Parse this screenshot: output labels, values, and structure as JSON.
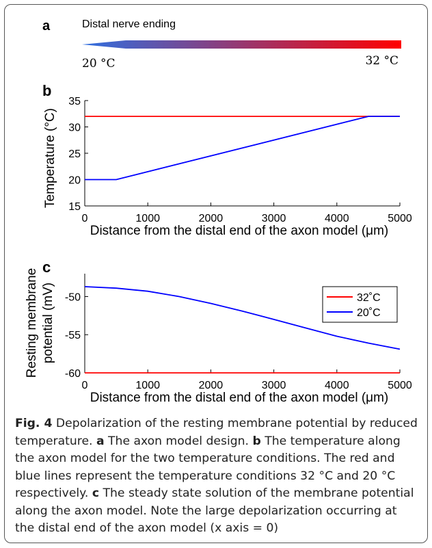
{
  "panel_a": {
    "label": "a",
    "title": "Distal nerve ending",
    "left_temp": "20 °C",
    "right_temp": "32 °C",
    "gradient_colors": [
      "#2f6fe0",
      "#ff0000"
    ]
  },
  "caption": {
    "fig_label": "Fig. 4",
    "lead": "Depolarization of the resting membrane potential by reduced temperature.",
    "a_label": "a",
    "a_text": "The axon model design.",
    "b_label": "b",
    "b_text": "The temperature along the axon model for the two temperature conditions. The red and blue lines represent the temperature conditions 32 °C and 20 °C respectively.",
    "c_label": "c",
    "c_text": "The steady state solution of the membrane potential along the axon model. Note the large depolarization occurring at the distal end of the axon model (x axis = 0)"
  },
  "chart_data": [
    {
      "type": "line",
      "panel_label": "b",
      "xlabel": "Distance from the distal end of the axon model (μm)",
      "ylabel": "Temperature (°C)",
      "xlim": [
        0,
        5000
      ],
      "ylim": [
        15,
        35
      ],
      "xticks": [
        0,
        1000,
        2000,
        3000,
        4000,
        5000
      ],
      "yticks": [
        15,
        20,
        25,
        30,
        35
      ],
      "grid": false,
      "series": [
        {
          "color": "#ff0000",
          "x": [
            0,
            5000
          ],
          "y": [
            32,
            32
          ]
        },
        {
          "color": "#0000ff",
          "x": [
            0,
            500,
            4500,
            5000
          ],
          "y": [
            20,
            20,
            32,
            32
          ]
        }
      ]
    },
    {
      "type": "line",
      "panel_label": "c",
      "xlabel": "Distance from the distal end of the axon model (μm)",
      "ylabel": "Resting membrane potential (mV)",
      "ylabel_lines": [
        "Resting membrane",
        "potential (mV)"
      ],
      "xlim": [
        0,
        5000
      ],
      "ylim": [
        -60,
        -47
      ],
      "xticks": [
        0,
        1000,
        2000,
        3000,
        4000,
        5000
      ],
      "yticks": [
        -60,
        -55,
        -50
      ],
      "grid": false,
      "legend_position": "top-right",
      "series": [
        {
          "name": "32˚C",
          "color": "#ff0000",
          "x": [
            0,
            5000
          ],
          "y": [
            -60,
            -60
          ]
        },
        {
          "name": "20˚C",
          "color": "#0000ff",
          "x": [
            0,
            500,
            1000,
            1500,
            2000,
            2500,
            3000,
            3500,
            4000,
            4500,
            5000
          ],
          "y": [
            -48.7,
            -48.9,
            -49.3,
            -50.0,
            -50.9,
            -51.9,
            -53.0,
            -54.1,
            -55.2,
            -56.1,
            -56.9
          ]
        }
      ]
    }
  ]
}
